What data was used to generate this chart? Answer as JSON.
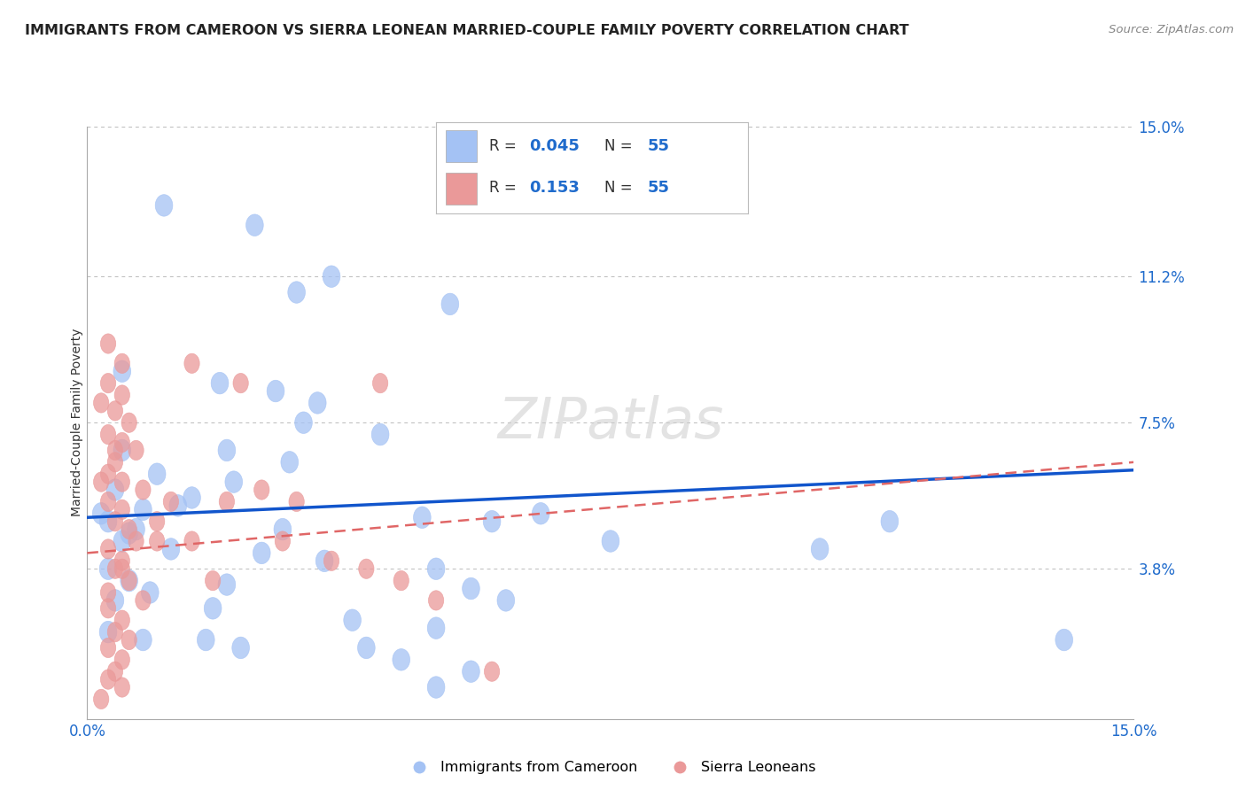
{
  "title": "IMMIGRANTS FROM CAMEROON VS SIERRA LEONEAN MARRIED-COUPLE FAMILY POVERTY CORRELATION CHART",
  "source": "Source: ZipAtlas.com",
  "xlabel": "Immigrants from Cameroon",
  "ylabel": "Married-Couple Family Poverty",
  "xlim": [
    0,
    15.0
  ],
  "ylim": [
    0,
    15.0
  ],
  "xtick_labels": [
    "0.0%",
    "15.0%"
  ],
  "ytick_values": [
    0.0,
    3.8,
    7.5,
    11.2,
    15.0
  ],
  "ytick_labels": [
    "",
    "3.8%",
    "7.5%",
    "11.2%",
    "15.0%"
  ],
  "blue_R": "0.045",
  "blue_N": "55",
  "pink_R": "0.153",
  "pink_N": "55",
  "blue_color": "#a4c2f4",
  "pink_color": "#ea9999",
  "trend_blue_color": "#1155cc",
  "trend_pink_color": "#e06666",
  "watermark": "ZIPatlas",
  "legend_label_blue": "Immigrants from Cameroon",
  "legend_label_pink": "Sierra Leoneans",
  "blue_trend_x": [
    0.0,
    15.0
  ],
  "blue_trend_y": [
    5.1,
    6.3
  ],
  "pink_trend_x": [
    0.0,
    15.0
  ],
  "pink_trend_y": [
    4.2,
    6.5
  ],
  "blue_points": [
    [
      1.1,
      13.0
    ],
    [
      2.4,
      12.5
    ],
    [
      3.5,
      11.2
    ],
    [
      3.0,
      10.8
    ],
    [
      5.2,
      10.5
    ],
    [
      0.5,
      8.8
    ],
    [
      1.9,
      8.5
    ],
    [
      2.7,
      8.3
    ],
    [
      3.3,
      8.0
    ],
    [
      3.1,
      7.5
    ],
    [
      4.2,
      7.2
    ],
    [
      0.5,
      6.8
    ],
    [
      2.9,
      6.5
    ],
    [
      1.0,
      6.2
    ],
    [
      2.1,
      6.0
    ],
    [
      0.4,
      5.8
    ],
    [
      1.5,
      5.6
    ],
    [
      0.8,
      5.3
    ],
    [
      5.8,
      5.0
    ],
    [
      6.5,
      5.2
    ],
    [
      0.3,
      5.0
    ],
    [
      0.7,
      4.8
    ],
    [
      4.8,
      5.1
    ],
    [
      0.5,
      4.5
    ],
    [
      1.2,
      4.3
    ],
    [
      2.5,
      4.2
    ],
    [
      3.4,
      4.0
    ],
    [
      0.3,
      3.8
    ],
    [
      0.6,
      3.5
    ],
    [
      2.0,
      3.4
    ],
    [
      5.0,
      3.8
    ],
    [
      5.5,
      3.3
    ],
    [
      6.0,
      3.0
    ],
    [
      0.4,
      3.0
    ],
    [
      1.8,
      2.8
    ],
    [
      3.8,
      2.5
    ],
    [
      5.0,
      2.3
    ],
    [
      0.3,
      2.2
    ],
    [
      0.8,
      2.0
    ],
    [
      2.2,
      1.8
    ],
    [
      4.5,
      1.5
    ],
    [
      5.5,
      1.2
    ],
    [
      5.0,
      0.8
    ],
    [
      7.5,
      4.5
    ],
    [
      10.5,
      4.3
    ],
    [
      11.5,
      5.0
    ],
    [
      14.0,
      2.0
    ],
    [
      0.2,
      5.2
    ],
    [
      1.3,
      5.4
    ],
    [
      0.6,
      4.7
    ],
    [
      2.8,
      4.8
    ],
    [
      0.9,
      3.2
    ],
    [
      1.7,
      2.0
    ],
    [
      4.0,
      1.8
    ],
    [
      2.0,
      6.8
    ]
  ],
  "pink_points": [
    [
      0.3,
      9.5
    ],
    [
      0.5,
      9.0
    ],
    [
      0.3,
      8.5
    ],
    [
      0.5,
      8.2
    ],
    [
      1.5,
      9.0
    ],
    [
      0.2,
      8.0
    ],
    [
      0.4,
      7.8
    ],
    [
      0.6,
      7.5
    ],
    [
      0.3,
      7.2
    ],
    [
      0.5,
      7.0
    ],
    [
      0.7,
      6.8
    ],
    [
      0.4,
      6.5
    ],
    [
      0.3,
      6.2
    ],
    [
      0.5,
      6.0
    ],
    [
      0.8,
      5.8
    ],
    [
      0.3,
      5.5
    ],
    [
      0.5,
      5.3
    ],
    [
      1.2,
      5.5
    ],
    [
      0.4,
      5.0
    ],
    [
      0.6,
      4.8
    ],
    [
      1.0,
      4.5
    ],
    [
      0.3,
      4.3
    ],
    [
      0.5,
      4.0
    ],
    [
      1.5,
      4.5
    ],
    [
      0.4,
      3.8
    ],
    [
      0.6,
      3.5
    ],
    [
      0.3,
      3.2
    ],
    [
      0.8,
      3.0
    ],
    [
      2.0,
      5.5
    ],
    [
      2.5,
      5.8
    ],
    [
      3.0,
      5.5
    ],
    [
      2.2,
      8.5
    ],
    [
      4.2,
      8.5
    ],
    [
      3.5,
      4.0
    ],
    [
      4.0,
      3.8
    ],
    [
      4.5,
      3.5
    ],
    [
      5.0,
      3.0
    ],
    [
      0.3,
      2.8
    ],
    [
      0.5,
      2.5
    ],
    [
      0.4,
      2.2
    ],
    [
      0.6,
      2.0
    ],
    [
      0.3,
      1.8
    ],
    [
      0.5,
      1.5
    ],
    [
      0.4,
      1.2
    ],
    [
      0.3,
      1.0
    ],
    [
      0.5,
      0.8
    ],
    [
      0.2,
      0.5
    ],
    [
      0.7,
      4.5
    ],
    [
      1.8,
      3.5
    ],
    [
      0.4,
      6.8
    ],
    [
      0.2,
      6.0
    ],
    [
      1.0,
      5.0
    ],
    [
      2.8,
      4.5
    ],
    [
      0.5,
      3.8
    ],
    [
      5.8,
      1.2
    ]
  ]
}
